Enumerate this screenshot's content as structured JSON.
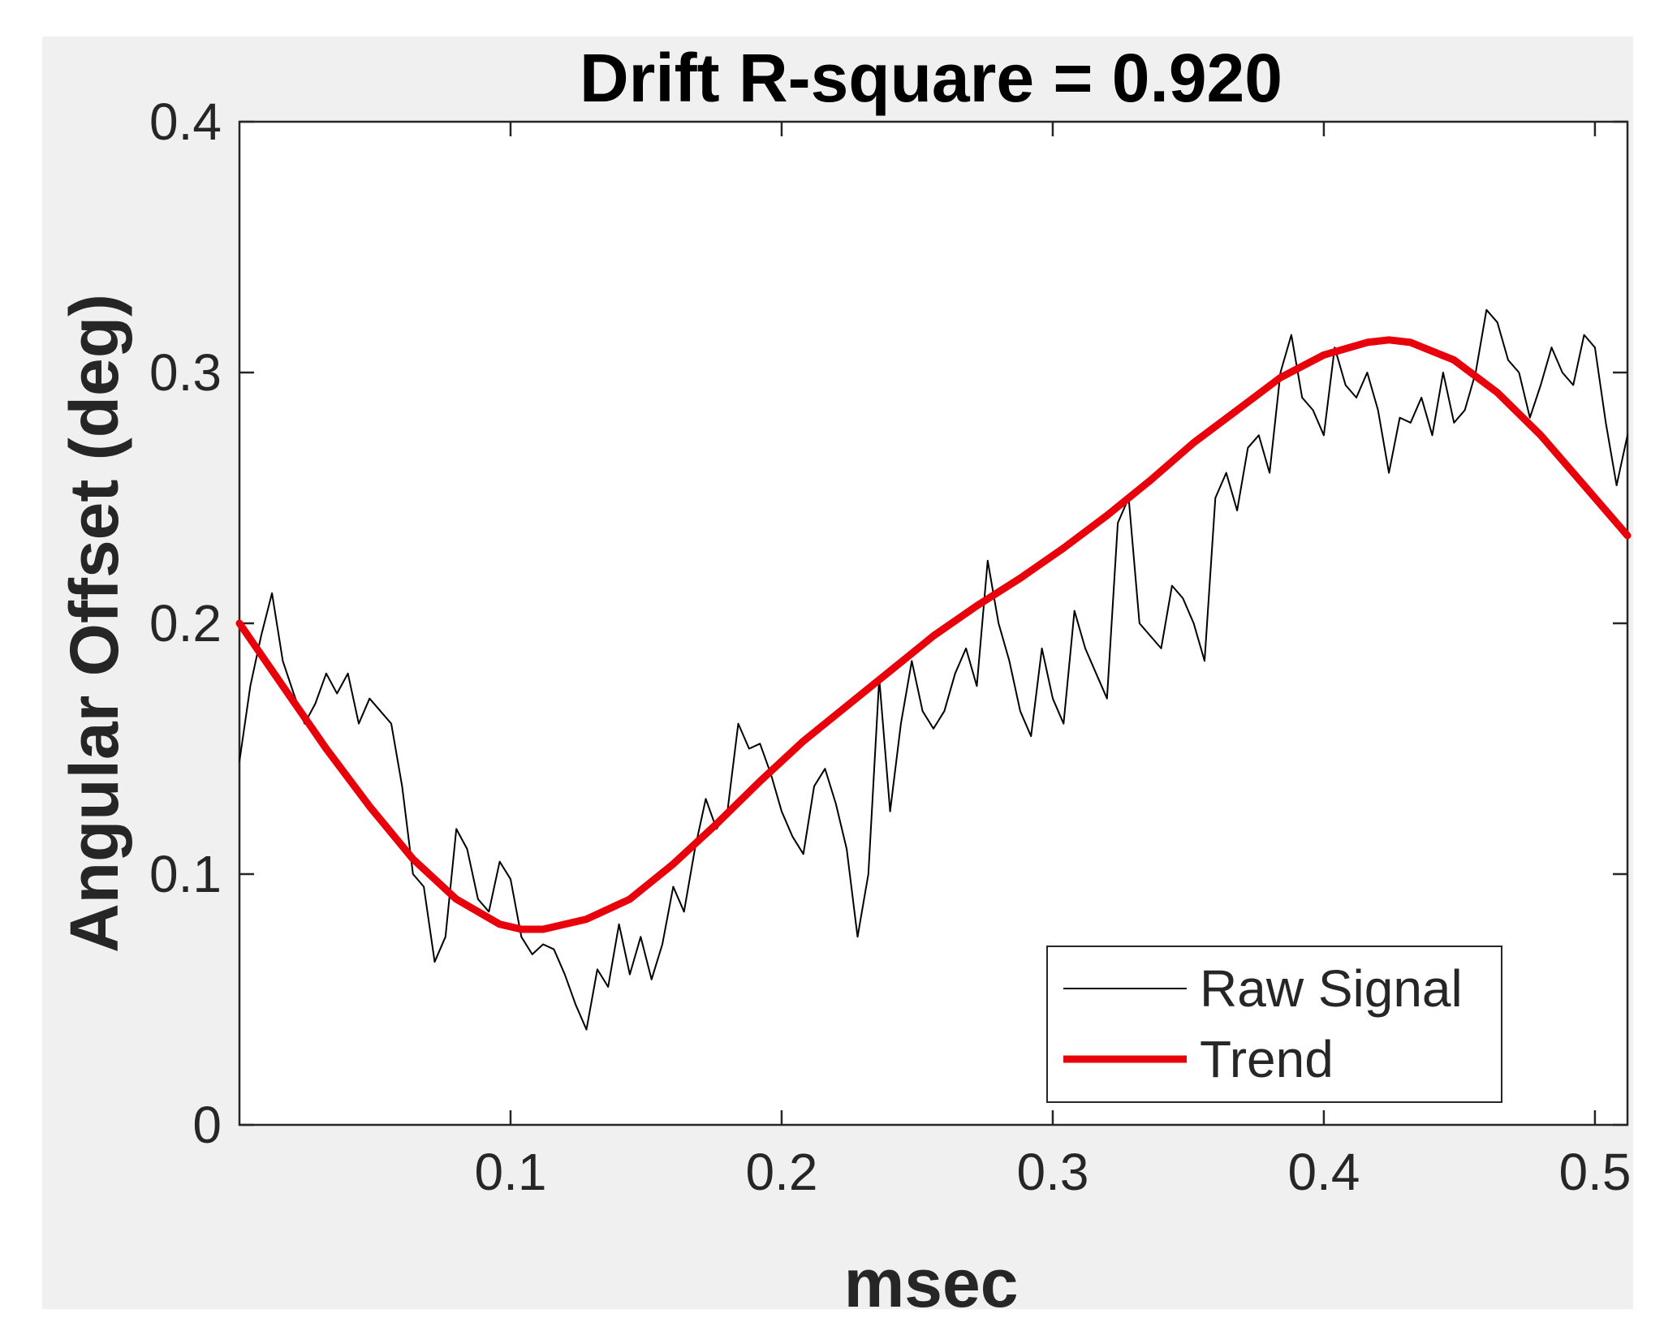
{
  "chart_data": {
    "type": "line",
    "title": "Drift R-square = 0.920",
    "xlabel": "msec",
    "ylabel": "Angular Offset (deg)",
    "xlim": [
      0,
      0.512
    ],
    "ylim": [
      0,
      0.4
    ],
    "x_ticks": [
      0.1,
      0.2,
      0.3,
      0.4,
      0.5
    ],
    "x_tick_labels": [
      "0.1",
      "0.2",
      "0.3",
      "0.4",
      "0.5"
    ],
    "y_ticks": [
      0,
      0.1,
      0.2,
      0.3,
      0.4
    ],
    "y_tick_labels": [
      "0",
      "0.1",
      "0.2",
      "0.3",
      "0.4"
    ],
    "grid": false,
    "legend_position": "bottom-right",
    "series": [
      {
        "name": "Raw Signal",
        "color": "#000000",
        "style": "thin",
        "x": [
          0.0,
          0.004,
          0.008,
          0.012,
          0.016,
          0.02,
          0.024,
          0.028,
          0.032,
          0.036,
          0.04,
          0.044,
          0.048,
          0.052,
          0.056,
          0.06,
          0.064,
          0.068,
          0.072,
          0.076,
          0.08,
          0.084,
          0.088,
          0.092,
          0.096,
          0.1,
          0.104,
          0.108,
          0.112,
          0.116,
          0.12,
          0.124,
          0.128,
          0.132,
          0.136,
          0.14,
          0.144,
          0.148,
          0.152,
          0.156,
          0.16,
          0.164,
          0.168,
          0.172,
          0.176,
          0.18,
          0.184,
          0.188,
          0.192,
          0.196,
          0.2,
          0.204,
          0.208,
          0.212,
          0.216,
          0.22,
          0.224,
          0.228,
          0.232,
          0.236,
          0.24,
          0.244,
          0.248,
          0.252,
          0.256,
          0.26,
          0.264,
          0.268,
          0.272,
          0.276,
          0.28,
          0.284,
          0.288,
          0.292,
          0.296,
          0.3,
          0.304,
          0.308,
          0.312,
          0.316,
          0.32,
          0.324,
          0.328,
          0.332,
          0.336,
          0.34,
          0.344,
          0.348,
          0.352,
          0.356,
          0.36,
          0.364,
          0.368,
          0.372,
          0.376,
          0.38,
          0.384,
          0.388,
          0.392,
          0.396,
          0.4,
          0.404,
          0.408,
          0.412,
          0.416,
          0.42,
          0.424,
          0.428,
          0.432,
          0.436,
          0.44,
          0.444,
          0.448,
          0.452,
          0.456,
          0.46,
          0.464,
          0.468,
          0.472,
          0.476,
          0.48,
          0.484,
          0.488,
          0.492,
          0.496,
          0.5,
          0.504,
          0.508,
          0.512
        ],
        "values": [
          0.145,
          0.175,
          0.195,
          0.212,
          0.185,
          0.172,
          0.16,
          0.168,
          0.18,
          0.172,
          0.18,
          0.16,
          0.17,
          0.165,
          0.16,
          0.135,
          0.1,
          0.095,
          0.065,
          0.075,
          0.118,
          0.11,
          0.09,
          0.085,
          0.105,
          0.098,
          0.075,
          0.068,
          0.072,
          0.07,
          0.06,
          0.048,
          0.038,
          0.062,
          0.055,
          0.08,
          0.06,
          0.075,
          0.058,
          0.072,
          0.095,
          0.085,
          0.11,
          0.13,
          0.118,
          0.125,
          0.16,
          0.15,
          0.152,
          0.14,
          0.125,
          0.115,
          0.108,
          0.135,
          0.142,
          0.128,
          0.11,
          0.075,
          0.1,
          0.178,
          0.125,
          0.16,
          0.185,
          0.165,
          0.158,
          0.165,
          0.18,
          0.19,
          0.175,
          0.225,
          0.2,
          0.185,
          0.165,
          0.155,
          0.19,
          0.17,
          0.16,
          0.205,
          0.19,
          0.18,
          0.17,
          0.24,
          0.25,
          0.2,
          0.195,
          0.19,
          0.215,
          0.21,
          0.2,
          0.185,
          0.25,
          0.26,
          0.245,
          0.27,
          0.275,
          0.26,
          0.3,
          0.315,
          0.29,
          0.285,
          0.275,
          0.31,
          0.295,
          0.29,
          0.3,
          0.285,
          0.26,
          0.282,
          0.28,
          0.29,
          0.275,
          0.3,
          0.28,
          0.285,
          0.3,
          0.325,
          0.32,
          0.305,
          0.3,
          0.282,
          0.295,
          0.31,
          0.3,
          0.295,
          0.315,
          0.31,
          0.28,
          0.255,
          0.275
        ],
        "note_values_shape": ""
      },
      {
        "name": "Trend",
        "color": "#e8000b",
        "style": "thick",
        "x": [
          0.0,
          0.016,
          0.032,
          0.048,
          0.064,
          0.08,
          0.096,
          0.104,
          0.112,
          0.128,
          0.144,
          0.16,
          0.176,
          0.192,
          0.208,
          0.224,
          0.24,
          0.256,
          0.272,
          0.288,
          0.304,
          0.32,
          0.336,
          0.352,
          0.368,
          0.384,
          0.4,
          0.416,
          0.424,
          0.432,
          0.448,
          0.464,
          0.48,
          0.496,
          0.512
        ],
        "values": [
          0.2,
          0.175,
          0.15,
          0.127,
          0.106,
          0.09,
          0.08,
          0.078,
          0.078,
          0.082,
          0.09,
          0.104,
          0.12,
          0.137,
          0.153,
          0.167,
          0.181,
          0.195,
          0.207,
          0.218,
          0.23,
          0.243,
          0.257,
          0.272,
          0.285,
          0.298,
          0.307,
          0.312,
          0.313,
          0.312,
          0.305,
          0.292,
          0.275,
          0.255,
          0.235
        ]
      }
    ]
  }
}
